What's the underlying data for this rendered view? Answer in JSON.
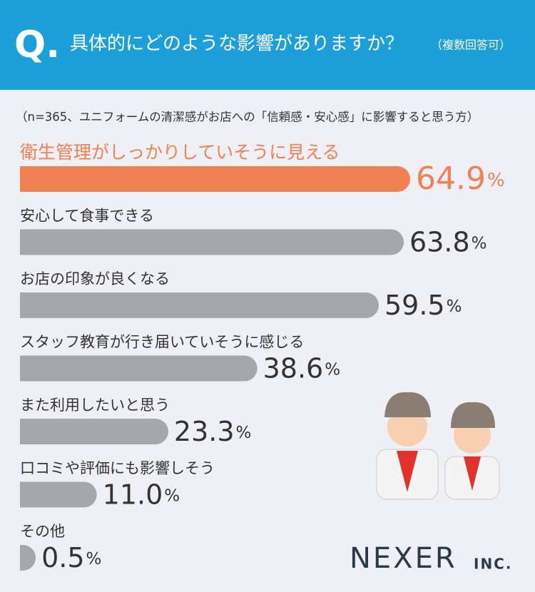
{
  "header": {
    "mark": "Q.",
    "title": "具体的にどのような影響がありますか？",
    "note": "（複数回答可）"
  },
  "chart_data": {
    "type": "hbar",
    "subtitle": "（n=365、ユニフォームの清潔感がお店への「信頼感・安心感」に影響すると思う方）",
    "categories": [
      "衛生管理がしっかりしていそうに見える",
      "安心して食事できる",
      "お店の印象が良くなる",
      "スタッフ教育が行き届いていそうに感じる",
      "また利用したいと思う",
      "口コミや評価にも影響しそう",
      "その他"
    ],
    "values": [
      64.9,
      63.8,
      59.5,
      38.6,
      23.3,
      11.0,
      0.5
    ],
    "value_labels": [
      "64.9%",
      "63.8%",
      "59.5%",
      "38.6%",
      "23.3%",
      "11.0%",
      "0.5%"
    ],
    "color": "#a6a7ac",
    "highlight_color": "#ef8152"
  },
  "footer": {
    "logo": "NEXER",
    "logo_suffix": "INC."
  }
}
